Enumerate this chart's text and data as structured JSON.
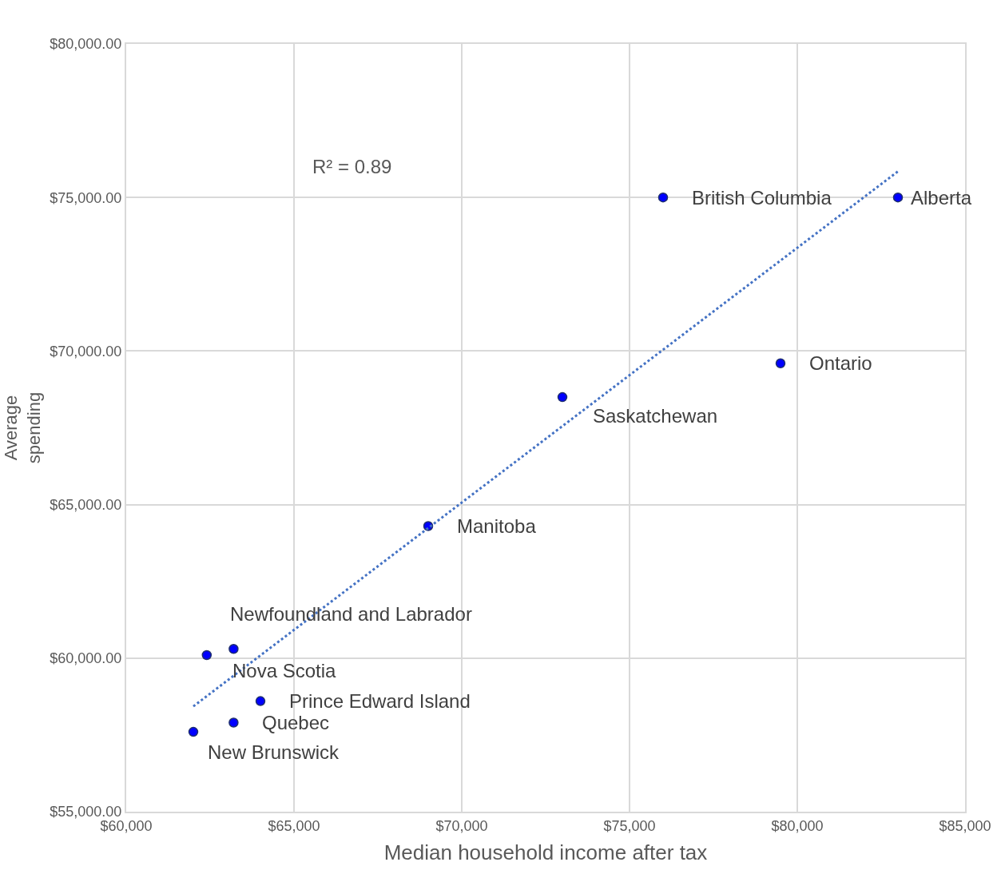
{
  "chart_data": {
    "type": "scatter",
    "xlabel": "Median household income after tax",
    "ylabel": "Average\nspending",
    "x": [
      83000,
      76000,
      79500,
      73000,
      69000,
      63200,
      62400,
      64000,
      63200,
      62000
    ],
    "series": [
      {
        "color": "#0000ff",
        "values": [
          75000,
          75000,
          69600,
          68500,
          64300,
          60300,
          60100,
          58600,
          57900,
          57600
        ]
      },
      {
        "type": "line",
        "color": "#4472c4",
        "line_style": "dotted",
        "marker": "none",
        "x": [
          62000,
          83000
        ],
        "values": [
          58430,
          75850
        ]
      }
    ],
    "annotations": [
      "R² = 0.89",
      {
        "text": "Alberta",
        "x": 83000,
        "y": 75000
      },
      {
        "text": "British Columbia",
        "x": 76000,
        "y": 75000
      },
      {
        "text": "Ontario",
        "x": 79500,
        "y": 69600
      },
      {
        "text": "Saskatchewan",
        "x": 73000,
        "y": 68500
      },
      {
        "text": "Manitoba",
        "x": 69000,
        "y": 64300
      },
      {
        "text": "Newfoundland and Labrador",
        "x": 63200,
        "y": 60300
      },
      {
        "text": "Nova Scotia",
        "x": 62400,
        "y": 60100
      },
      {
        "text": "Prince Edward Island",
        "x": 64000,
        "y": 58600
      },
      {
        "text": "Quebec",
        "x": 63200,
        "y": 57900
      },
      {
        "text": "New Brunswick",
        "x": 62000,
        "y": 57600
      }
    ],
    "xlim": [
      60000,
      85000
    ],
    "xticks": [
      {
        "value": 60000,
        "label": "$60,000"
      },
      {
        "value": 65000,
        "label": "$65,000"
      },
      {
        "value": 70000,
        "label": "$70,000"
      },
      {
        "value": 75000,
        "label": "$75,000"
      },
      {
        "value": 80000,
        "label": "$80,000"
      },
      {
        "value": 85000,
        "label": "$85,000"
      }
    ],
    "ylim": [
      55000,
      80000
    ],
    "yticks": [
      {
        "value": 55000,
        "label": "$55,000.00"
      },
      {
        "value": 60000,
        "label": "$60,000.00"
      },
      {
        "value": 65000,
        "label": "$65,000.00"
      },
      {
        "value": 70000,
        "label": "$70,000.00"
      },
      {
        "value": 75000,
        "label": "$75,000.00"
      },
      {
        "value": 80000,
        "label": "$80,000.00"
      }
    ],
    "grid": true,
    "legend": false,
    "marker": "circle"
  }
}
